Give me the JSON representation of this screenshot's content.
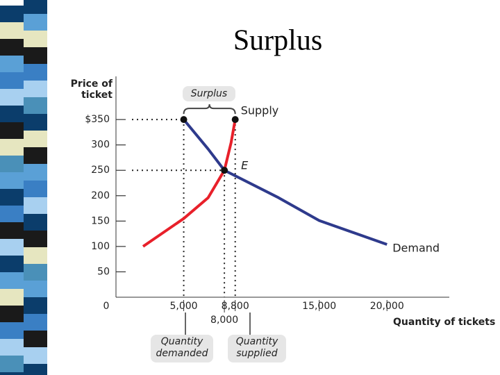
{
  "chart_data": {
    "type": "line",
    "title": "Surplus",
    "x_label": "Quantity of tickets",
    "y_label": "Price of ticket",
    "series": [
      {
        "name": "Supply",
        "color": "#e8202a",
        "x": [
          2000,
          5000,
          6800,
          8000,
          8500,
          8800
        ],
        "values": [
          100,
          155,
          196,
          250,
          305,
          350
        ]
      },
      {
        "name": "Demand",
        "color": "#2e3a8c",
        "x": [
          5000,
          6800,
          8000,
          12000,
          15000,
          20000
        ],
        "values": [
          350,
          292,
          250,
          196,
          151,
          104
        ]
      }
    ],
    "xlim": [
      0,
      24600
    ],
    "ylim": [
      0,
      435
    ],
    "xticks": [
      {
        "value": 5000,
        "label": "5,000"
      },
      {
        "value": 8000,
        "label": "8,000"
      },
      {
        "value": 8800,
        "label": "8,800"
      },
      {
        "value": 15000,
        "label": "15,000"
      },
      {
        "value": 20000,
        "label": "20,000"
      }
    ],
    "yticks": [
      0,
      50,
      100,
      150,
      200,
      250,
      300,
      {
        "value": 350,
        "label": "$350"
      }
    ],
    "annotations": {
      "surplus": "Surplus",
      "equilibrium": "E",
      "quantity_demanded": "Quantity demanded",
      "quantity_supplied": "Quantity supplied"
    }
  }
}
